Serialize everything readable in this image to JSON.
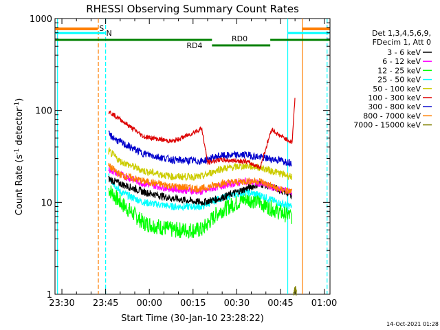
{
  "chart_data": {
    "type": "line",
    "title": "RHESSI Observing Summary Count Rates",
    "xlabel": "Start Time (30-Jan-10 23:28:22)",
    "ylabel_main": "Count Rate (s",
    "ylabel_sup1": "-1",
    "ylabel_mid": " detector",
    "ylabel_sup2": "-1",
    "ylabel_end": ")",
    "yscale": "log",
    "ylim": [
      1,
      1000
    ],
    "xlim_minutes": [
      -2.37,
      92.0
    ],
    "x_tick_labels": [
      "23:30",
      "23:45",
      "00:00",
      "00:15",
      "00:30",
      "00:45",
      "01:00"
    ],
    "x_tick_minutes": [
      0,
      15,
      30,
      45,
      60,
      75,
      90
    ],
    "y_tick_labels": [
      "1",
      "10",
      "100",
      "1000"
    ],
    "y_tick_values": [
      1,
      10,
      100,
      1000
    ],
    "legend": {
      "header1": "Det 1,3,4,5,6,9,",
      "header2": "FDecim 1, Att 0",
      "placement": "right"
    },
    "series": [
      {
        "name": "3 - 6 keV",
        "color": "#000000",
        "night_level": 16,
        "values_minutes": [
          16,
          20,
          28,
          38,
          48,
          54,
          63,
          68,
          74,
          79
        ],
        "values": [
          18,
          16,
          13,
          11,
          10,
          11,
          14,
          16,
          14,
          12
        ]
      },
      {
        "name": "6 - 12 keV",
        "color": "#ff00ff",
        "values_minutes": [
          16,
          20,
          28,
          38,
          48,
          54,
          63,
          68,
          74,
          79
        ],
        "values": [
          23,
          20,
          16,
          14,
          13,
          15,
          17,
          16,
          14,
          13
        ]
      },
      {
        "name": "12 - 25 keV",
        "color": "#00ff00",
        "values_minutes": [
          16,
          20,
          28,
          38,
          48,
          54,
          63,
          68,
          74,
          79
        ],
        "values": [
          14,
          10,
          6,
          5,
          5,
          8,
          11,
          10,
          8,
          7
        ]
      },
      {
        "name": "25 - 50 keV",
        "color": "#00ffff",
        "values_minutes": [
          16,
          20,
          28,
          38,
          48,
          54,
          63,
          68,
          74,
          79
        ],
        "values": [
          19,
          13,
          10,
          9,
          9,
          11,
          13,
          12,
          10,
          9
        ]
      },
      {
        "name": "50 - 100 keV",
        "color": "#cccc00",
        "values_minutes": [
          16,
          20,
          28,
          38,
          48,
          54,
          63,
          68,
          74,
          79
        ],
        "values": [
          36,
          28,
          22,
          19,
          19,
          23,
          25,
          24,
          21,
          19
        ]
      },
      {
        "name": "100 - 300 keV",
        "color": "#dd0000",
        "values_minutes": [
          16,
          20,
          28,
          38,
          44,
          48,
          50,
          54,
          63,
          68,
          72,
          74,
          79,
          80
        ],
        "values": [
          98,
          80,
          52,
          46,
          55,
          64,
          27,
          29,
          28,
          24,
          63,
          55,
          45,
          140
        ]
      },
      {
        "name": "300 - 800 keV",
        "color": "#0000cc",
        "values_minutes": [
          16,
          20,
          28,
          38,
          48,
          54,
          63,
          68,
          74,
          79
        ],
        "values": [
          55,
          45,
          34,
          29,
          28,
          32,
          33,
          31,
          29,
          27
        ]
      },
      {
        "name": "800 - 7000 keV",
        "color": "#ff7f00",
        "values_minutes": [
          16,
          20,
          28,
          38,
          48,
          54,
          63,
          68,
          74,
          79
        ],
        "values": [
          25,
          20,
          17,
          15,
          14,
          16,
          17,
          17,
          14,
          13
        ]
      },
      {
        "name": "7000 - 15000 keV",
        "color": "#808000",
        "values_minutes": [
          79.5,
          80,
          80.5
        ],
        "values": [
          1.0,
          1.2,
          1.0
        ]
      }
    ],
    "annotations": [
      {
        "label": "S",
        "color": "#ff7f00",
        "kind": "saa_bar"
      },
      {
        "label": "N",
        "color": "#00ffff",
        "kind": "night_bar"
      },
      {
        "label": "RD0",
        "color": "#008000",
        "kind": "decimation_bar"
      },
      {
        "label": "RD4",
        "color": "#008000",
        "kind": "decimation_bar"
      }
    ],
    "vertical_markers": [
      {
        "minute": -1.5,
        "color": "#00ffff",
        "style": "solid"
      },
      {
        "minute": 12.5,
        "color": "#ff7f00",
        "style": "dashed"
      },
      {
        "minute": 15.0,
        "color": "#00ffff",
        "style": "dashed"
      },
      {
        "minute": 77.5,
        "color": "#00ffff",
        "style": "solid"
      },
      {
        "minute": 82.5,
        "color": "#ff7f00",
        "style": "solid"
      },
      {
        "minute": 91.0,
        "color": "#00ffff",
        "style": "dashed"
      }
    ],
    "footer": "14-Oct-2021 01:28"
  }
}
